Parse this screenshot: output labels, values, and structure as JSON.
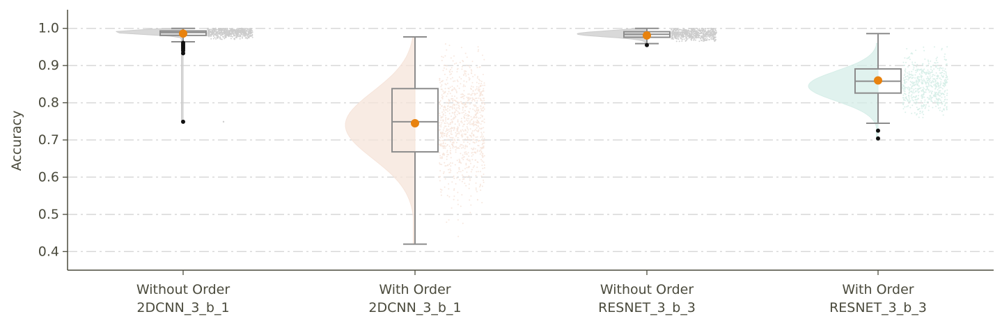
{
  "chart_data": {
    "type": "raincloud",
    "title": "",
    "xlabel": "",
    "ylabel": "Accuracy",
    "ylim": [
      0.35,
      1.05
    ],
    "yticks": [
      0.4,
      0.5,
      0.6,
      0.7,
      0.8,
      0.9,
      1.0
    ],
    "ytick_labels": [
      "0.4",
      "0.5",
      "0.6",
      "0.7",
      "0.8",
      "0.9",
      "1.0"
    ],
    "grid": "horizontal dash-dot",
    "legend": "none",
    "categories": [
      {
        "line1": "Without Order",
        "line2": "2DCNN_3_b_1"
      },
      {
        "line1": "With Order",
        "line2": "2DCNN_3_b_1"
      },
      {
        "line1": "Without Order",
        "line2": "RESNET_3_b_3"
      },
      {
        "line1": "With Order",
        "line2": "RESNET_3_b_3"
      }
    ],
    "groups": [
      {
        "color": "#cccccc",
        "box": {
          "q1": 0.981,
          "median": 0.989,
          "q3": 0.993,
          "whisker_low": 0.964,
          "whisker_high": 1.0
        },
        "mean": 0.986,
        "outliers": [
          0.961,
          0.957,
          0.953,
          0.949,
          0.945,
          0.94,
          0.933,
          0.749
        ],
        "scatter_range": [
          0.97,
          1.0
        ],
        "scatter_extra": [
          0.749
        ],
        "density_extent": [
          0.749,
          1.0
        ],
        "density_mode": 0.99,
        "density_spread": 0.006
      },
      {
        "color": "#f6e4da",
        "box": {
          "q1": 0.668,
          "median": 0.749,
          "q3": 0.838,
          "whisker_low": 0.42,
          "whisker_high": 0.977
        },
        "mean": 0.745,
        "outliers": [],
        "scatter_range": [
          0.42,
          0.96
        ],
        "scatter_extra": [],
        "density_extent": [
          0.42,
          0.977
        ],
        "density_mode": 0.74,
        "density_spread": 0.09
      },
      {
        "color": "#cccccc",
        "box": {
          "q1": 0.976,
          "median": 0.984,
          "q3": 0.991,
          "whisker_low": 0.959,
          "whisker_high": 1.0
        },
        "mean": 0.981,
        "outliers": [
          0.955
        ],
        "scatter_range": [
          0.965,
          1.0
        ],
        "scatter_extra": [],
        "density_extent": [
          0.955,
          1.0
        ],
        "density_mode": 0.985,
        "density_spread": 0.008
      },
      {
        "color": "#d6eee8",
        "box": {
          "q1": 0.826,
          "median": 0.858,
          "q3": 0.891,
          "whisker_low": 0.745,
          "whisker_high": 0.986
        },
        "mean": 0.86,
        "outliers": [
          0.725,
          0.704
        ],
        "scatter_range": [
          0.76,
          0.96
        ],
        "scatter_extra": [],
        "density_extent": [
          0.7,
          0.96
        ],
        "density_mode": 0.845,
        "density_spread": 0.04
      }
    ],
    "colors": {
      "box_line": "#8c8c8c",
      "mean_marker": "#e8820e",
      "outlier": "#111111",
      "axis": "#4a4a3c",
      "grid": "#d8d8d8"
    }
  }
}
